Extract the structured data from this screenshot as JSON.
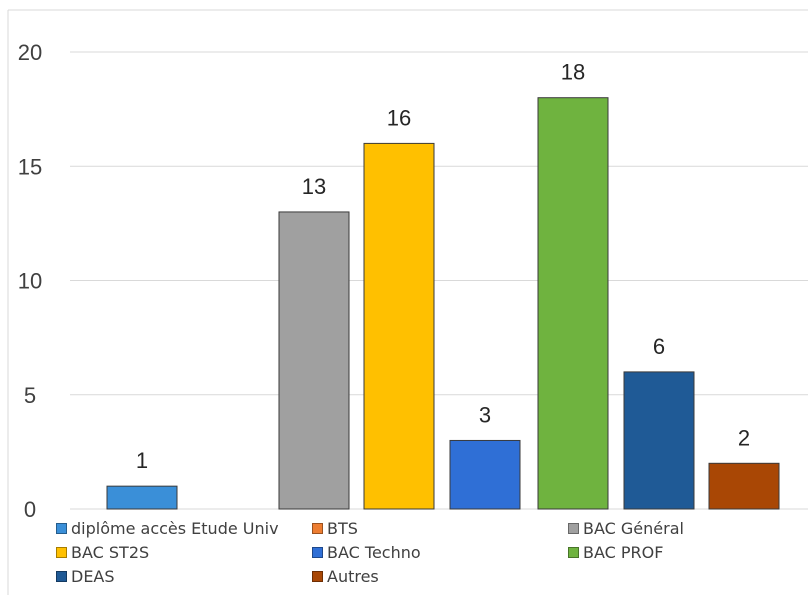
{
  "chart_data": {
    "type": "bar",
    "title": "",
    "xlabel": "",
    "ylabel": "",
    "ylim": [
      0,
      20
    ],
    "yticks": [
      "0",
      "5",
      "10",
      "15",
      "20"
    ],
    "grid": true,
    "legend_position": "bottom",
    "series": [
      {
        "name": "diplôme accès Etude Univ",
        "value": 1,
        "label": "1",
        "color": "#3a8fd8"
      },
      {
        "name": "BTS",
        "value": null,
        "label": "",
        "color": "#ed7d31"
      },
      {
        "name": "BAC Général",
        "value": 13,
        "label": "13",
        "color": "#a0a0a0"
      },
      {
        "name": "BAC ST2S",
        "value": 16,
        "label": "16",
        "color": "#ffc000"
      },
      {
        "name": "BAC Techno",
        "value": 3,
        "label": "3",
        "color": "#2f6fd6"
      },
      {
        "name": "BAC PROF",
        "value": 18,
        "label": "18",
        "color": "#6fb33f"
      },
      {
        "name": "DEAS",
        "value": 6,
        "label": "6",
        "color": "#1f5a96"
      },
      {
        "name": "Autres",
        "value": 2,
        "label": "2",
        "color": "#a94705"
      }
    ]
  }
}
